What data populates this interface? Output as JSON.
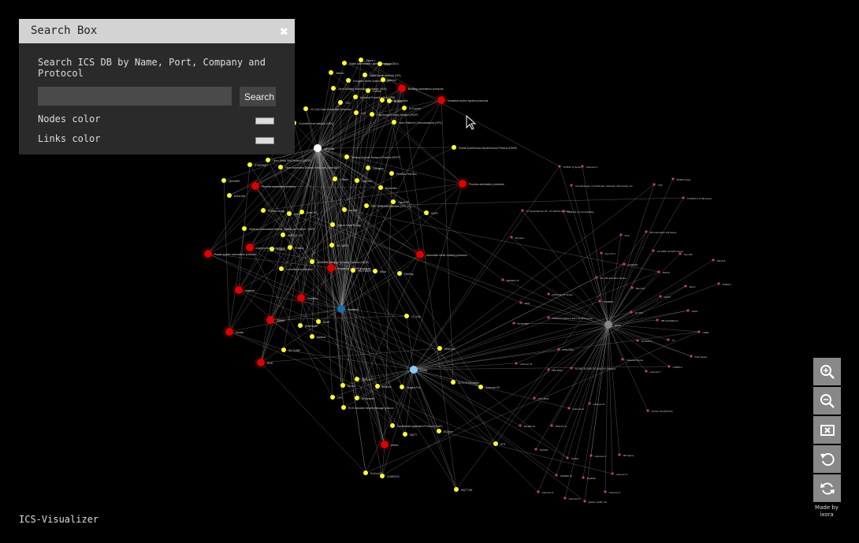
{
  "search_box": {
    "title": "Search Box",
    "description": "Search ICS DB by Name, Port, Company and Protocol",
    "input_value": "",
    "search_label": "Search",
    "nodes_color_label": "Nodes color",
    "links_color_label": "Links color",
    "nodes_color": "#dddddd",
    "links_color": "#dddddd"
  },
  "footer": {
    "app_name": "ICS-Visualizer",
    "credit": "Made by ixora"
  },
  "zoom_controls": [
    "zoom-in-icon",
    "zoom-out-icon",
    "fit-icon",
    "reset-icon",
    "refresh-icon"
  ],
  "colors": {
    "protocol_node": "#ffff33",
    "category_node": "#dd0000",
    "vendor_node": "#cc3399",
    "hub_white": "#ffffff",
    "hub_blue": "#1a6fb0",
    "hub_lightblue": "#88ccee",
    "hub_grey": "#888888"
  },
  "graph": {
    "hubs": [
      {
        "id": "h1",
        "label": "wifipedia",
        "color": "#ffffff"
      },
      {
        "id": "h2",
        "label": "Industrial",
        "color": "#1a6fb0"
      },
      {
        "id": "h3",
        "label": "Ewing",
        "color": "#88ccee"
      },
      {
        "id": "h4",
        "label": "ports",
        "color": "#888888"
      }
    ],
    "categories": [
      {
        "id": "c1",
        "label": "Building automation protocols"
      },
      {
        "id": "c2",
        "label": "Industrial control system protocols"
      },
      {
        "id": "c3",
        "label": "Process automation protocol"
      },
      {
        "id": "c4",
        "label": "Process automation protocols"
      },
      {
        "id": "c5",
        "label": "Power system automation protocols"
      },
      {
        "id": "c6",
        "label": "Communication protocol"
      },
      {
        "id": "c7",
        "label": "Automatic meter reading protocols"
      },
      {
        "id": "c8",
        "label": "Automotic network protocols"
      },
      {
        "id": "c9",
        "label": "General"
      },
      {
        "id": "c10",
        "label": "Fieldbus"
      },
      {
        "id": "c11",
        "label": "Zigbee"
      },
      {
        "id": "c12",
        "label": "private"
      },
      {
        "id": "c13",
        "label": "SNS"
      },
      {
        "id": "c14",
        "label": "others"
      }
    ],
    "protocols": [
      {
        "id": "p1",
        "label": "Zigbee 1"
      },
      {
        "id": "p2",
        "label": "Digital Addressable Lighting Interface (DALI)"
      },
      {
        "id": "p3",
        "label": "BSAP"
      },
      {
        "id": "p4",
        "label": "Insteon"
      },
      {
        "id": "p5",
        "label": "Digital Serial Interface (DSI)"
      },
      {
        "id": "p6",
        "label": "European Home Systems (EHS)"
      },
      {
        "id": "p7",
        "label": "Internet"
      },
      {
        "id": "p8",
        "label": "Open Building Information Exchange (oBIX)"
      },
      {
        "id": "p9",
        "label": "Konnex"
      },
      {
        "id": "p10",
        "label": "Universal Powerline Bus (UPB)"
      },
      {
        "id": "p11",
        "label": "Ethernet Powerlink"
      },
      {
        "id": "p12",
        "label": "NetBus"
      },
      {
        "id": "p13",
        "label": "TCE"
      },
      {
        "id": "p14",
        "label": "CC-Link Open Automation Networks"
      },
      {
        "id": "p15",
        "label": "xAP"
      },
      {
        "id": "p16",
        "label": "Very Simple Control Protocol (VSCP)"
      },
      {
        "id": "p17",
        "label": "HTControl"
      },
      {
        "id": "p18",
        "label": "Open Platform Communications (OPC)"
      },
      {
        "id": "p19",
        "label": "Controller Area Network (CAN)"
      },
      {
        "id": "p20",
        "label": "Global Synchronous Asynchronous Protocol (GSAP)"
      },
      {
        "id": "p21",
        "label": "Open Smart Grid Protocol (OSGP)"
      },
      {
        "id": "p22",
        "label": "Service Request Transport Protocol (SRTP)"
      },
      {
        "id": "p23",
        "label": "ETHERNET"
      },
      {
        "id": "p24",
        "label": "Open Automated Demand Response (OpenADR)"
      },
      {
        "id": "p25",
        "label": "CANopen"
      },
      {
        "id": "p26",
        "label": "OpenADR"
      },
      {
        "id": "p27",
        "label": "Z-Wave"
      },
      {
        "id": "p28",
        "label": "Process Field Bus"
      },
      {
        "id": "p29",
        "label": "Optomux"
      },
      {
        "id": "p30",
        "label": "Direct link"
      },
      {
        "id": "p31",
        "label": "DeviceNet"
      },
      {
        "id": "p32",
        "label": "Process Image"
      },
      {
        "id": "p33",
        "label": "HART"
      },
      {
        "id": "p34",
        "label": "Sinec H1"
      },
      {
        "id": "p35",
        "label": "LonTalk"
      },
      {
        "id": "p36",
        "label": "OPC Unified Architecture (OPC UA)"
      },
      {
        "id": "p37",
        "label": "Zigbee IP"
      },
      {
        "id": "p38",
        "label": "DNP3"
      },
      {
        "id": "p39",
        "label": "Zigbee Smart Energy"
      },
      {
        "id": "p40",
        "label": "Highway Addressable Remote Transducer Protocol - HART"
      },
      {
        "id": "p41",
        "label": "ANSI C12.22"
      },
      {
        "id": "p42",
        "label": "IEC 60870"
      },
      {
        "id": "p43",
        "label": "Profinet"
      },
      {
        "id": "p44",
        "label": "Profibus"
      },
      {
        "id": "p45",
        "label": "Advanced Message Queuing Protocol (AMQP)"
      },
      {
        "id": "p46",
        "label": "Controller Area Network"
      },
      {
        "id": "p47",
        "label": "PROFIBUS"
      },
      {
        "id": "p48",
        "label": "MBus"
      },
      {
        "id": "p49",
        "label": "FlexRay"
      },
      {
        "id": "p50",
        "label": "EtherNet/IP"
      },
      {
        "id": "p51",
        "label": "BSAP"
      },
      {
        "id": "p52",
        "label": "Modbus"
      },
      {
        "id": "p53",
        "label": "CC-Link"
      },
      {
        "id": "p54",
        "label": "IEC 61850"
      },
      {
        "id": "p55",
        "label": "EtherCAT"
      },
      {
        "id": "p56",
        "label": "SERCOS"
      },
      {
        "id": "p57",
        "label": "Nexus"
      },
      {
        "id": "p58",
        "label": "CCTV IP Encoders"
      },
      {
        "id": "p59",
        "label": "Modbus"
      },
      {
        "id": "p60",
        "label": "Niagara Fox"
      },
      {
        "id": "p61",
        "label": "Unknown 03"
      },
      {
        "id": "p62",
        "label": "OPC"
      },
      {
        "id": "p63",
        "label": "Redundant"
      },
      {
        "id": "p64",
        "label": "ROS Industrial Simple Message protocol"
      },
      {
        "id": "p65",
        "label": "Constrained Application Protocol (CoAP)"
      },
      {
        "id": "p66",
        "label": "MQTT"
      },
      {
        "id": "p67",
        "label": "PCWorx"
      },
      {
        "id": "p68",
        "label": "ATG"
      },
      {
        "id": "p69",
        "label": "ProConOS"
      },
      {
        "id": "p70",
        "label": "CODESYS"
      },
      {
        "id": "p71",
        "label": "MQTT-SN"
      },
      {
        "id": "p72",
        "label": "NB-IoT protocol / Kamstrup"
      },
      {
        "id": "p73",
        "label": "Unitronics"
      }
    ],
    "vendors": [
      {
        "id": "v1",
        "label": "SYMAX Q Series"
      },
      {
        "id": "v2",
        "label": "unknown 4"
      },
      {
        "id": "v3",
        "label": "CompactLogix, ControlLogix, Flexlogix, MicroLogix, etc."
      },
      {
        "id": "v4",
        "label": "YKS"
      },
      {
        "id": "v5",
        "label": "EK900 series"
      },
      {
        "id": "v6",
        "label": "TODOPLC TC28 series"
      },
      {
        "id": "v7",
        "label": "S7 Series/Series S5 - S7-300/S7-400 etc."
      },
      {
        "id": "v8",
        "label": "OMRON CJ ControlWave"
      },
      {
        "id": "v9",
        "label": "Encoder"
      },
      {
        "id": "v10",
        "label": "PC2"
      },
      {
        "id": "v11",
        "label": "FB Automation FB Series"
      },
      {
        "id": "v12",
        "label": "Sym KB"
      },
      {
        "id": "v13",
        "label": "ACROSS"
      },
      {
        "id": "v14",
        "label": "SX 4050/ SX 5070 series"
      },
      {
        "id": "v15",
        "label": "Sym LiF 1"
      },
      {
        "id": "v16",
        "label": "TRIUS"
      },
      {
        "id": "v17",
        "label": "TECH 8"
      },
      {
        "id": "v18",
        "label": "FELLAU"
      },
      {
        "id": "v19",
        "label": "FE 7/8x-ECx/ECx Series"
      },
      {
        "id": "v20",
        "label": "SITECH"
      },
      {
        "id": "v21",
        "label": "Wtom"
      },
      {
        "id": "v22",
        "label": "RTMBRS"
      },
      {
        "id": "v23",
        "label": "G4CX"
      },
      {
        "id": "v24",
        "label": "HITACHI CS Series"
      },
      {
        "id": "v25",
        "label": "NLFD"
      },
      {
        "id": "v26",
        "label": "PNO"
      },
      {
        "id": "v27",
        "label": "SITRANS SERVO Ethernet M-8 series"
      },
      {
        "id": "v28",
        "label": "Q7 4FX"
      },
      {
        "id": "v29",
        "label": "SIB QuickBench"
      },
      {
        "id": "v30",
        "label": "TC AprilSF"
      },
      {
        "id": "v31",
        "label": "UDMI"
      },
      {
        "id": "v32",
        "label": "SimCAT 5"
      },
      {
        "id": "v33",
        "label": "TX"
      },
      {
        "id": "v34",
        "label": "ATW-1500"
      },
      {
        "id": "v35",
        "label": "Yaskawa Sigma"
      },
      {
        "id": "v36",
        "label": "KNX Series"
      },
      {
        "id": "v37",
        "label": "unknown 11"
      },
      {
        "id": "v38",
        "label": "S7-200, S7-300, S7-1200, S7-1500 etc."
      },
      {
        "id": "v39",
        "label": "unknown 7"
      },
      {
        "id": "v40",
        "label": "CS550 K"
      },
      {
        "id": "v41",
        "label": "MW 5000"
      },
      {
        "id": "v42",
        "label": "DCS 3000"
      },
      {
        "id": "v43",
        "label": "unknown 2"
      },
      {
        "id": "v44",
        "label": "unknown 8"
      },
      {
        "id": "v45",
        "label": "TOTAL PLC/DPTCS"
      },
      {
        "id": "v46",
        "label": "ACS01"
      },
      {
        "id": "v47",
        "label": "unknown 1"
      },
      {
        "id": "v48",
        "label": "MP Series"
      },
      {
        "id": "v49",
        "label": "DSP800 JA"
      },
      {
        "id": "v50",
        "label": "BeaPS6"
      },
      {
        "id": "v51",
        "label": "unknown 3"
      },
      {
        "id": "v52",
        "label": "unknown 9"
      },
      {
        "id": "v53",
        "label": "unknown 5"
      },
      {
        "id": "v54",
        "label": "unknown 6"
      },
      {
        "id": "v55",
        "label": "guidec, jac00, etc."
      },
      {
        "id": "v56",
        "label": "SERIES UX"
      },
      {
        "id": "v57",
        "label": "TAMUR"
      },
      {
        "id": "v58",
        "label": "RH-860 ID"
      },
      {
        "id": "v59",
        "label": "TRIGCC-8"
      }
    ]
  }
}
